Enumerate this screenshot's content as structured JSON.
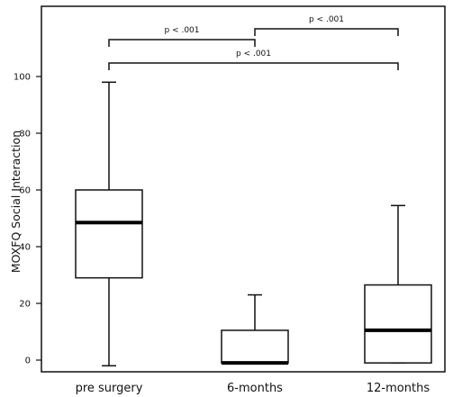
{
  "chart_data": {
    "type": "box",
    "ylabel": "MOXFQ Social Interaction",
    "xlabel": "",
    "title": "",
    "ylim": [
      -2,
      113
    ],
    "yticks": [
      0,
      20,
      40,
      60,
      80,
      100
    ],
    "grid": false,
    "categories": [
      "pre surgery",
      "6-months",
      "12-months"
    ],
    "boxes": [
      {
        "category": "pre surgery",
        "min": -2,
        "q1": 29,
        "median": 48.5,
        "q3": 60,
        "max": 98
      },
      {
        "category": "6-months",
        "min": -1,
        "q1": -1,
        "median": -1,
        "q3": 10.5,
        "max": 23
      },
      {
        "category": "12-months",
        "min": -1,
        "q1": -1,
        "median": 10.5,
        "q3": 26.5,
        "max": 54.5
      }
    ],
    "significance": [
      {
        "from": "pre surgery",
        "to": "6-months",
        "label": "p < .001"
      },
      {
        "from": "6-months",
        "to": "12-months",
        "label": "p < .001"
      },
      {
        "from": "pre surgery",
        "to": "12-months",
        "label": "p < .001"
      }
    ]
  }
}
